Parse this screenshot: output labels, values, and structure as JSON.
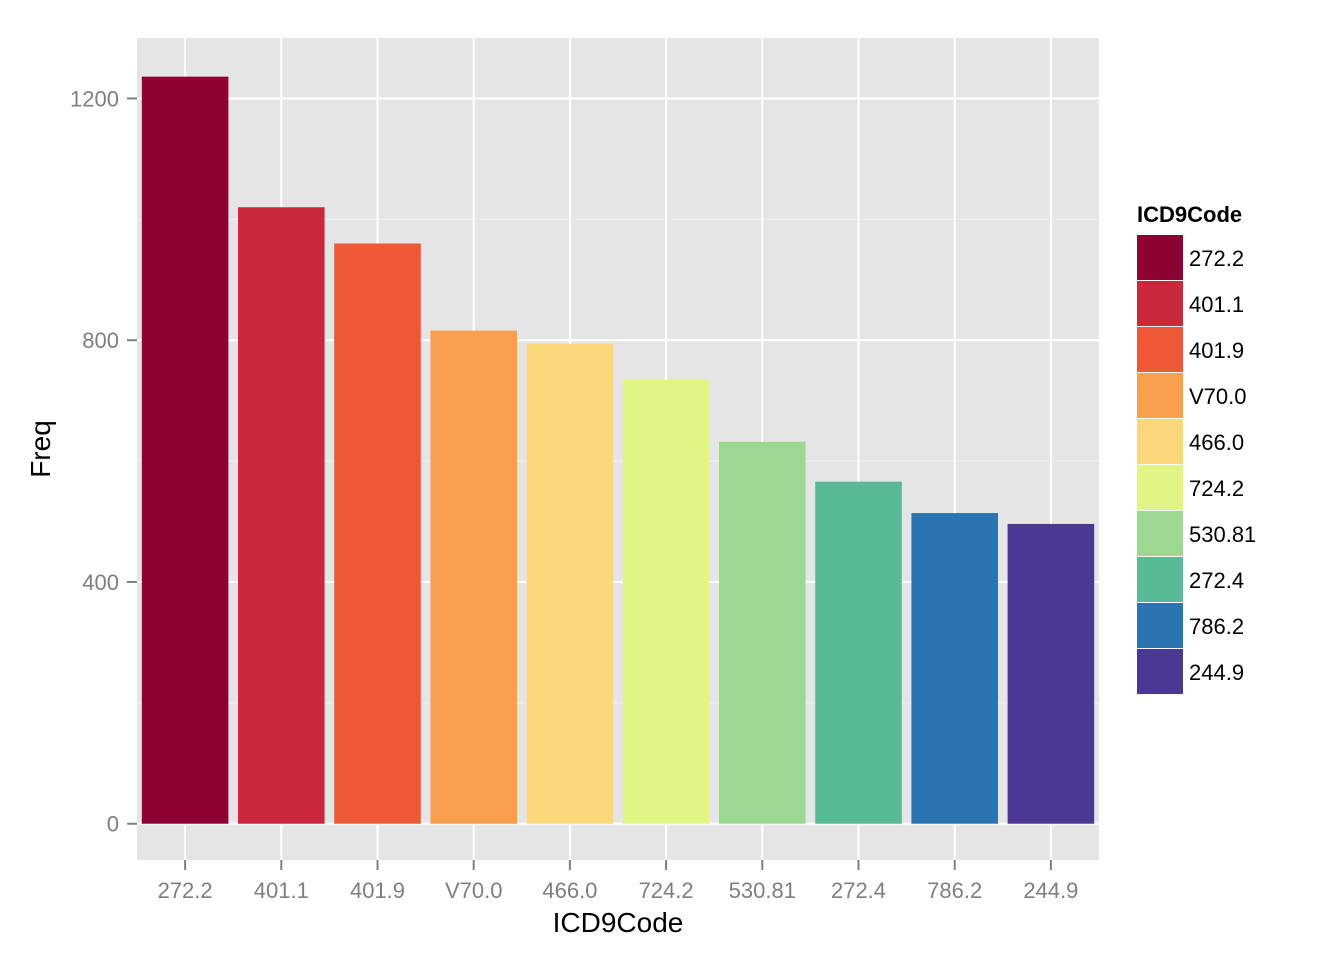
{
  "chart_data": {
    "type": "bar",
    "categories": [
      "272.2",
      "401.1",
      "401.9",
      "V70.0",
      "466.0",
      "724.2",
      "530.81",
      "272.4",
      "786.2",
      "244.9"
    ],
    "values": [
      1236,
      1020,
      960,
      816,
      794,
      734,
      632,
      566,
      514,
      496
    ],
    "colors": [
      "#8e0133",
      "#c9283d",
      "#ef5835",
      "#f9a050",
      "#fcd87b",
      "#e1f584",
      "#9dd893",
      "#58ba94",
      "#2b74b0",
      "#4b3893"
    ],
    "xlabel": "ICD9Code",
    "ylabel": "Freq",
    "yticks": [
      0,
      400,
      800,
      1200
    ],
    "ylim": [
      -60,
      1300
    ],
    "grid": true,
    "legend": {
      "title": "ICD9Code",
      "position": "right",
      "entries": [
        "272.2",
        "401.1",
        "401.9",
        "V70.0",
        "466.0",
        "724.2",
        "530.81",
        "272.4",
        "786.2",
        "244.9"
      ]
    }
  }
}
